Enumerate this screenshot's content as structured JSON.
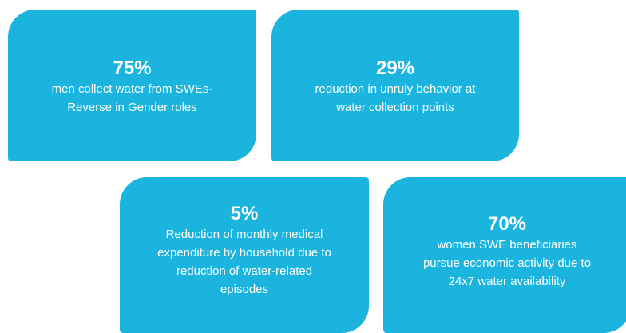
{
  "cards": [
    {
      "stat": "75%",
      "lines": [
        "men collect water from SWEs-",
        "Reverse in Gender roles"
      ]
    },
    {
      "stat": "29%",
      "lines": [
        "reduction in unruly behavior at",
        "water collection points"
      ]
    },
    {
      "stat": "5%",
      "lines": [
        "Reduction of monthly medical",
        "expenditure by household due to",
        "reduction of water-related",
        "episodes"
      ]
    },
    {
      "stat": "70%",
      "lines": [
        "women SWE beneficiaries",
        "pursue economic activity due to",
        "24x7 water availability"
      ]
    }
  ]
}
